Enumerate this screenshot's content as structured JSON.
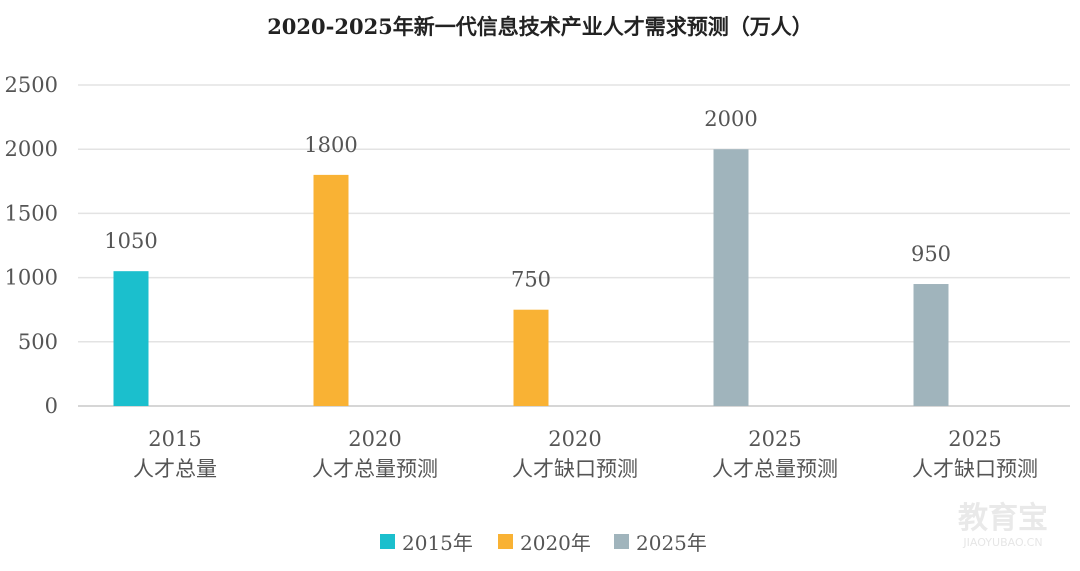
{
  "chart_data": {
    "type": "bar",
    "title": "2020-2025年新一代信息技术产业人才需求预测（万人）",
    "categories": [
      {
        "year": "2015",
        "label": "人才总量"
      },
      {
        "year": "2020",
        "label": "人才总量预测"
      },
      {
        "year": "2020",
        "label": "人才缺口预测"
      },
      {
        "year": "2025",
        "label": "人才总量预测"
      },
      {
        "year": "2025",
        "label": "人才缺口预测"
      }
    ],
    "values": [
      1050,
      1800,
      750,
      2000,
      950
    ],
    "value_labels": [
      "1050",
      "1800",
      "750",
      "2000",
      "950"
    ],
    "bar_series": [
      0,
      1,
      1,
      2,
      2
    ],
    "series": [
      {
        "name": "2015年",
        "color": "#1bbfcd"
      },
      {
        "name": "2020年",
        "color": "#f9b234"
      },
      {
        "name": "2025年",
        "color": "#a0b4bc"
      }
    ],
    "ylim": [
      0,
      2500
    ],
    "yticks": [
      "0",
      "500",
      "1000",
      "1500",
      "2000",
      "2500"
    ],
    "grid": true,
    "legend_position": "bottom-center"
  },
  "watermark": {
    "main": "教育宝",
    "sub": "JIAOYUBAO.CN",
    "icon": "watermark-logo"
  }
}
